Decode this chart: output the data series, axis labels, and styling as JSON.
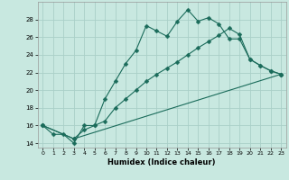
{
  "line1_x": [
    0,
    1,
    2,
    3,
    4,
    5,
    6,
    7,
    8,
    9,
    10,
    11,
    12,
    13,
    14,
    15,
    16,
    17,
    18,
    19,
    20,
    21,
    22,
    23
  ],
  "line1_y": [
    16,
    15,
    15,
    14,
    16,
    16,
    19,
    21,
    23,
    24.5,
    27.3,
    26.7,
    26.1,
    27.8,
    29.1,
    27.8,
    28.2,
    27.5,
    25.8,
    25.8,
    23.5,
    22.8,
    22.2,
    21.8
  ],
  "line2_x": [
    0,
    3,
    4,
    5,
    6,
    7,
    8,
    9,
    10,
    11,
    12,
    13,
    14,
    15,
    16,
    17,
    18,
    19,
    20,
    21,
    22,
    23
  ],
  "line2_y": [
    16,
    14.5,
    15.5,
    16,
    16.5,
    18,
    19,
    20,
    21,
    21.8,
    22.5,
    23.2,
    24.0,
    24.8,
    25.5,
    26.2,
    27.0,
    26.3,
    23.5,
    22.8,
    22.2,
    21.8
  ],
  "line3_x": [
    0,
    3,
    23
  ],
  "line3_y": [
    16,
    14.5,
    21.8
  ],
  "bg_color": "#c8e8e0",
  "grid_color": "#aacfc8",
  "line_color": "#1a6b5a",
  "xlabel": "Humidex (Indice chaleur)",
  "ylim": [
    13.5,
    30
  ],
  "xlim": [
    -0.5,
    23.5
  ],
  "yticks": [
    14,
    16,
    18,
    20,
    22,
    24,
    26,
    28
  ],
  "xticks": [
    0,
    1,
    2,
    3,
    4,
    5,
    6,
    7,
    8,
    9,
    10,
    11,
    12,
    13,
    14,
    15,
    16,
    17,
    18,
    19,
    20,
    21,
    22,
    23
  ],
  "marker": "D",
  "markersize": 2.5,
  "linewidth": 0.8
}
